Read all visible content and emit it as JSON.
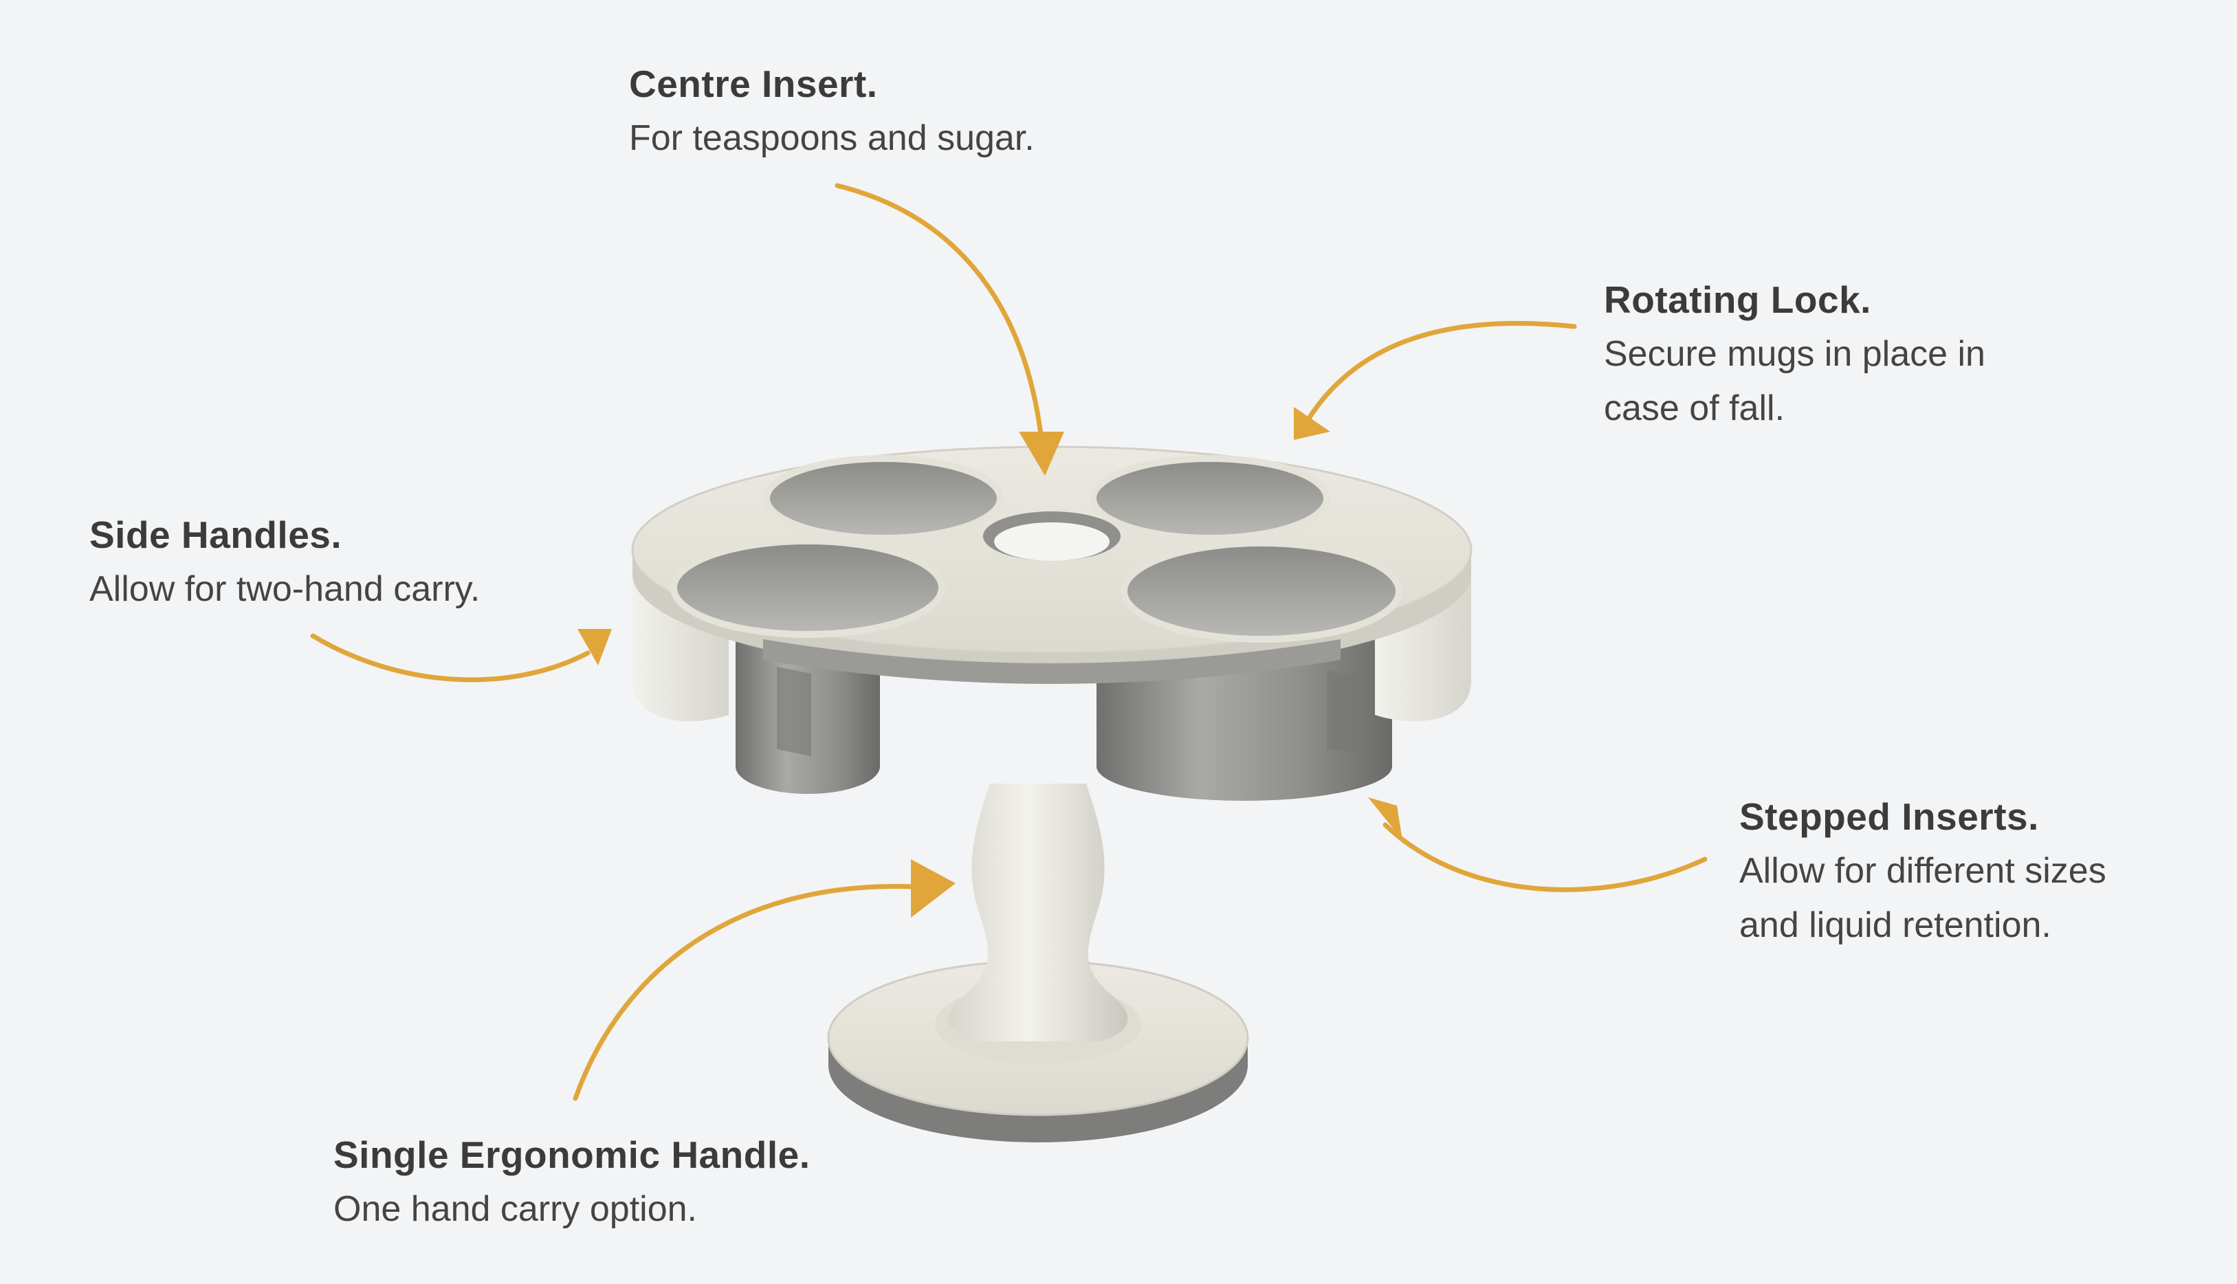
{
  "colors": {
    "background": "#f3f4f5",
    "arrow": "#e0a63a",
    "heading": "#3b3b3b",
    "body_text": "#444444",
    "product_cream": "#e7e5dc",
    "product_grey": "#8c8c8a"
  },
  "callouts": {
    "centre_insert": {
      "title": "Centre Insert.",
      "lines": [
        "For teaspoons and sugar."
      ]
    },
    "rotating_lock": {
      "title": "Rotating Lock.",
      "lines": [
        "Secure mugs in place in",
        "case of fall."
      ]
    },
    "side_handles": {
      "title": "Side Handles.",
      "lines": [
        "Allow for two-hand carry."
      ]
    },
    "stepped_inserts": {
      "title": "Stepped Inserts.",
      "lines": [
        "Allow for different sizes",
        "and liquid retention."
      ]
    },
    "single_handle": {
      "title": "Single Ergonomic Handle.",
      "lines": [
        "One hand carry option."
      ]
    }
  }
}
